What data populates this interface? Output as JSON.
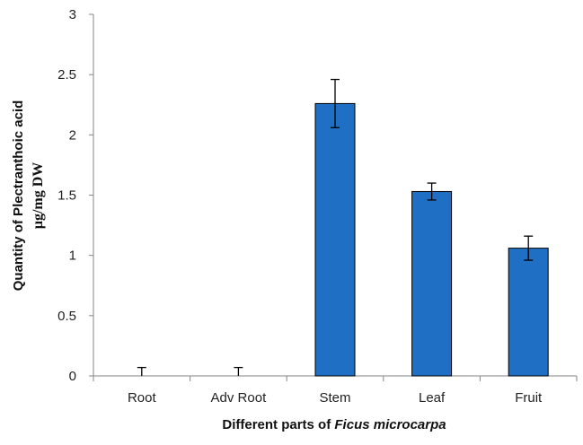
{
  "chart_data": {
    "type": "bar",
    "categories": [
      "Root",
      "Adv Root",
      "Stem",
      "Leaf",
      "Fruit"
    ],
    "values": [
      0,
      0,
      2.26,
      1.53,
      1.06
    ],
    "errors": [
      0.07,
      0.07,
      0.2,
      0.07,
      0.1
    ],
    "ylim": [
      0,
      3
    ],
    "yticks": [
      "0",
      "0.5",
      "1",
      "1.5",
      "2",
      "2.5",
      "3"
    ],
    "ylabel_line1": "Quantity of Plectranthoic acid",
    "ylabel_line2": "µg/mg DW",
    "xlabel_prefix": "Different parts of ",
    "xlabel_italic": "Ficus microcarpa",
    "bar_color": "#1f6fc5",
    "bar_edge_color": "#000000",
    "grid": false,
    "legend": "none"
  }
}
